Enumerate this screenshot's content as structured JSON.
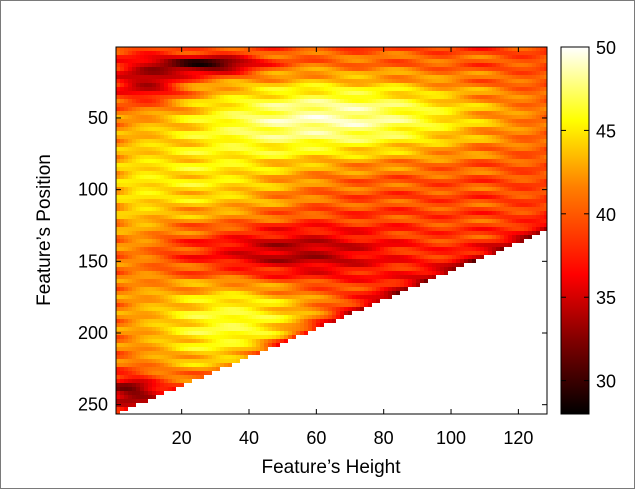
{
  "chart_data": {
    "type": "heatmap",
    "title": "",
    "xlabel": "Feature’s Height",
    "ylabel": "Feature’s Position",
    "x_range": [
      1,
      128
    ],
    "y_range": [
      1,
      256
    ],
    "y_reversed": true,
    "x_ticks": [
      20,
      40,
      60,
      80,
      100,
      120
    ],
    "y_ticks": [
      50,
      100,
      150,
      200,
      250
    ],
    "colorbar": {
      "range": [
        28,
        50
      ],
      "ticks": [
        30,
        35,
        40,
        45,
        50
      ],
      "colormap": "hot"
    },
    "valid_region": "position + height <= 257 (lower-right triangle is undefined, shown white)",
    "value_features": [
      {
        "x": 28,
        "y": 12,
        "value": 29,
        "note": "dark band near top"
      },
      {
        "x": 60,
        "y": 45,
        "value": 48,
        "note": "bright ridge"
      },
      {
        "x": 55,
        "y": 135,
        "value": 31,
        "note": "dark streak along diagonal"
      },
      {
        "x": 5,
        "y": 240,
        "value": 30,
        "note": "dark corner lower-left"
      },
      {
        "x": 30,
        "y": 195,
        "value": 46,
        "note": "bright lower region"
      }
    ],
    "colors": {
      "colormap_stops": [
        "#000000",
        "#800000",
        "#ff0000",
        "#ff8000",
        "#ffff00",
        "#ffffff"
      ]
    }
  }
}
